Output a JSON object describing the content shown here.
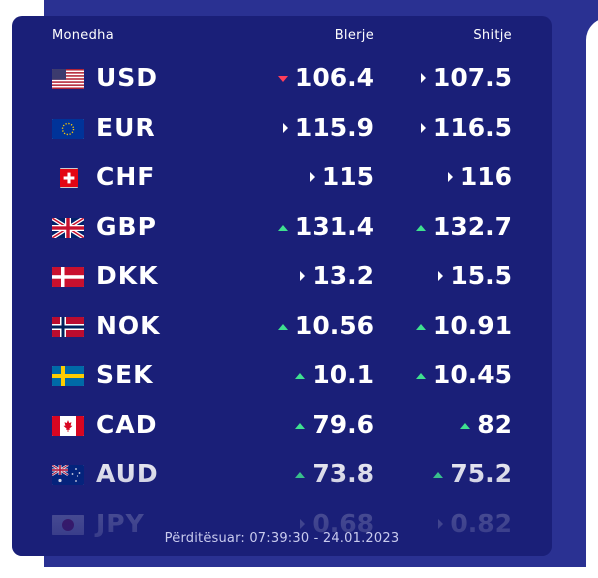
{
  "header": {
    "currency": "Monedha",
    "buy": "Blerje",
    "sell": "Shitje"
  },
  "colors": {
    "panel": "#1a1f78",
    "band": "#2a3192",
    "up": "#3fe08f",
    "down": "#ff3d5a",
    "flat": "#ffffff"
  },
  "rates": [
    {
      "code": "USD",
      "flag": "us-flag-icon",
      "buy": "106.4",
      "buy_trend": "down",
      "sell": "107.5",
      "sell_trend": "flat"
    },
    {
      "code": "EUR",
      "flag": "eu-flag-icon",
      "buy": "115.9",
      "buy_trend": "flat",
      "sell": "116.5",
      "sell_trend": "flat"
    },
    {
      "code": "CHF",
      "flag": "ch-flag-icon",
      "buy": "115",
      "buy_trend": "flat",
      "sell": "116",
      "sell_trend": "flat"
    },
    {
      "code": "GBP",
      "flag": "gb-flag-icon",
      "buy": "131.4",
      "buy_trend": "up",
      "sell": "132.7",
      "sell_trend": "up"
    },
    {
      "code": "DKK",
      "flag": "dk-flag-icon",
      "buy": "13.2",
      "buy_trend": "flat",
      "sell": "15.5",
      "sell_trend": "flat"
    },
    {
      "code": "NOK",
      "flag": "no-flag-icon",
      "buy": "10.56",
      "buy_trend": "up",
      "sell": "10.91",
      "sell_trend": "up"
    },
    {
      "code": "SEK",
      "flag": "se-flag-icon",
      "buy": "10.1",
      "buy_trend": "up",
      "sell": "10.45",
      "sell_trend": "up"
    },
    {
      "code": "CAD",
      "flag": "ca-flag-icon",
      "buy": "79.6",
      "buy_trend": "up",
      "sell": "82",
      "sell_trend": "up"
    },
    {
      "code": "AUD",
      "flag": "au-flag-icon",
      "buy": "73.8",
      "buy_trend": "up",
      "sell": "75.2",
      "sell_trend": "up"
    },
    {
      "code": "JPY",
      "flag": "jp-flag-icon",
      "buy": "0.68",
      "buy_trend": "flat",
      "sell": "0.82",
      "sell_trend": "flat"
    }
  ],
  "footer": {
    "updated": "Përditësuar: 07:39:30 - 24.01.2023"
  }
}
